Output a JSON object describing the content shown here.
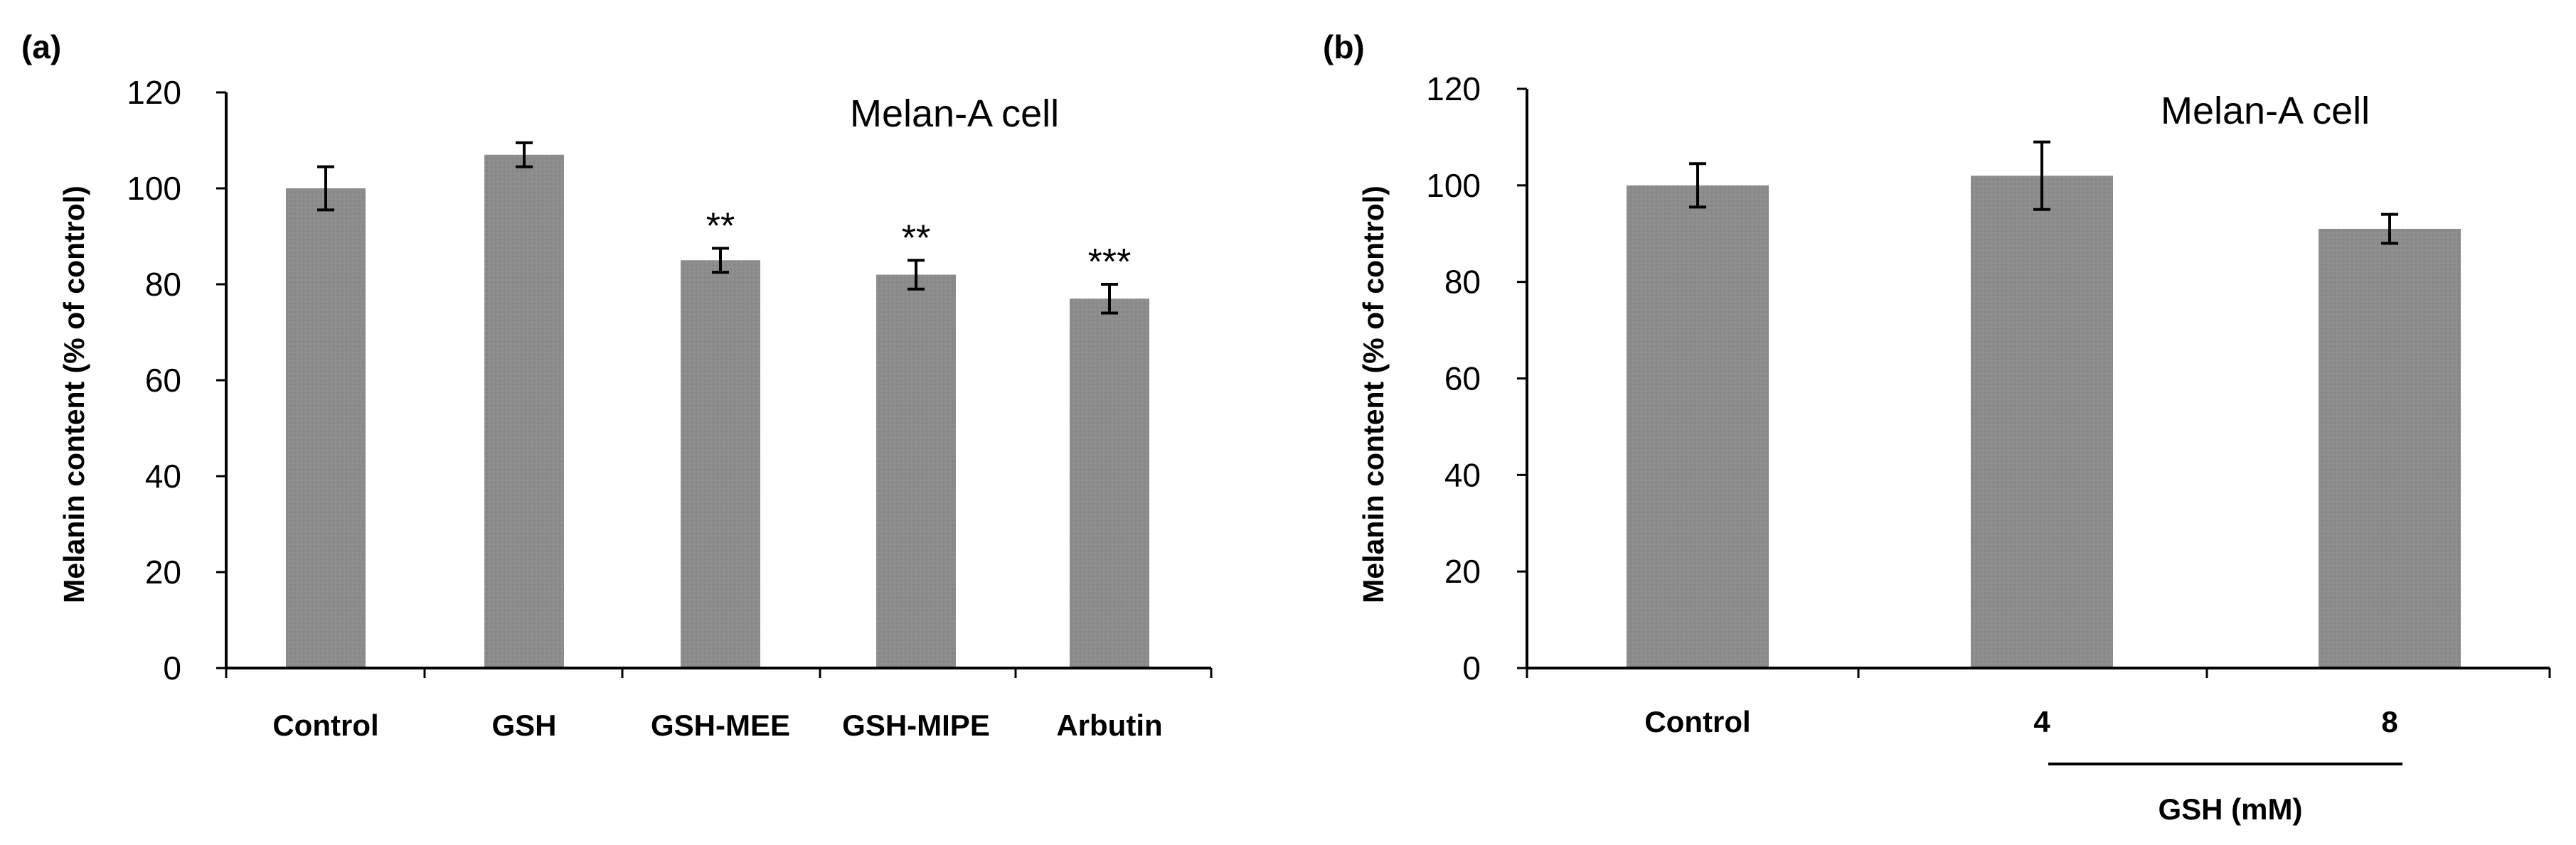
{
  "chart_data": [
    {
      "type": "bar",
      "panel_label": "(a)",
      "title": "Melan-A cell",
      "xlabel": "",
      "ylabel": "Melanin content (% of control)",
      "ylim": [
        0,
        120
      ],
      "yticks": [
        0,
        20,
        40,
        60,
        80,
        100,
        120
      ],
      "categories": [
        "Control",
        "GSH",
        "GSH-MEE",
        "GSH-MIPE",
        "Arbutin"
      ],
      "values": [
        100,
        107,
        85,
        82,
        77
      ],
      "errors": [
        4.5,
        2.5,
        2.5,
        3,
        3
      ],
      "significance": [
        "",
        "",
        "**",
        "**",
        "***"
      ],
      "bar_color": "#8c8c8c",
      "group_label": ""
    },
    {
      "type": "bar",
      "panel_label": "(b)",
      "title": "Melan-A cell",
      "xlabel": "",
      "ylabel": "Melanin content (% of control)",
      "ylim": [
        0,
        120
      ],
      "yticks": [
        0,
        20,
        40,
        60,
        80,
        100,
        120
      ],
      "categories": [
        "Control",
        "4",
        "8"
      ],
      "values": [
        100,
        102,
        91
      ],
      "errors": [
        4.5,
        7,
        3
      ],
      "significance": [
        "",
        "",
        ""
      ],
      "bar_color": "#8c8c8c",
      "group_label": "GSH (mM)"
    }
  ]
}
